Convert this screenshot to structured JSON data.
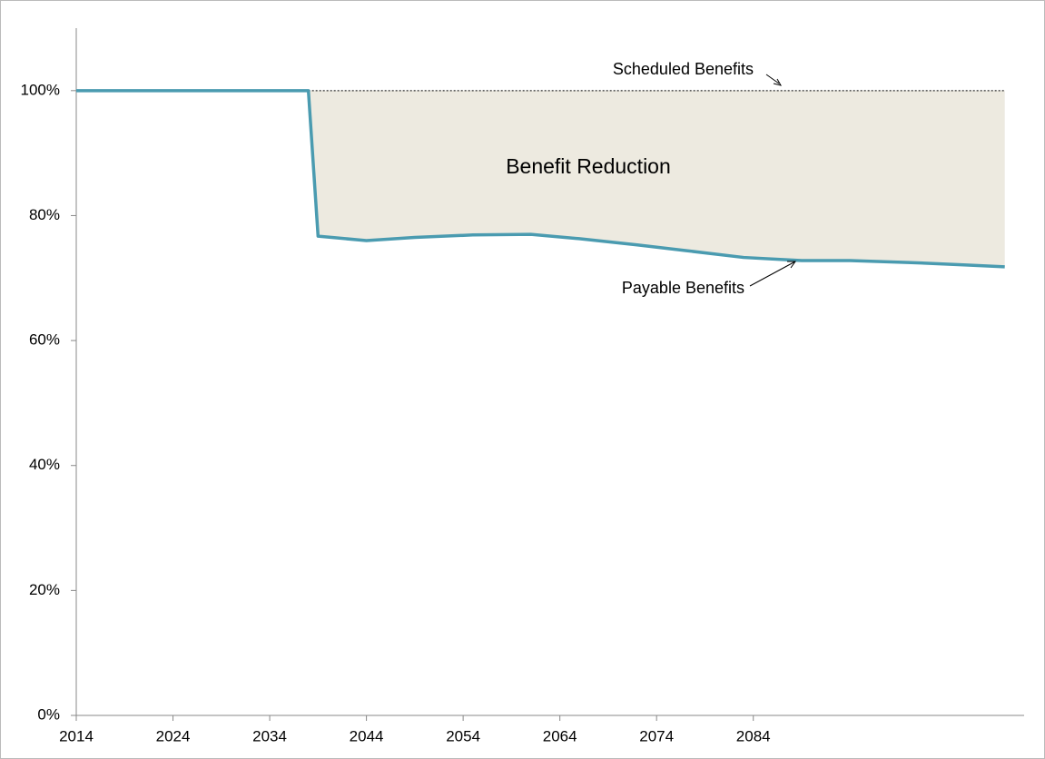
{
  "chart_data": {
    "type": "line",
    "x": [
      2014,
      2038,
      2039,
      2044,
      2049,
      2055,
      2061,
      2066,
      2072,
      2077,
      2083,
      2089,
      2094,
      2100,
      2106,
      2110
    ],
    "series": [
      {
        "name": "Scheduled Benefits",
        "color": "#000000",
        "values": [
          null,
          100,
          100,
          100,
          100,
          100,
          100,
          100,
          100,
          100,
          100,
          100,
          100,
          100,
          100,
          100
        ]
      },
      {
        "name": "Payable Benefits",
        "color": "#4a9bb0",
        "values": [
          100,
          100,
          76.7,
          76.0,
          76.5,
          76.9,
          77.0,
          76.3,
          75.3,
          74.4,
          73.3,
          72.8,
          72.8,
          72.5,
          72.1,
          71.8
        ]
      }
    ],
    "annotations": [
      "Benefit Reduction"
    ],
    "fill_color": "#edeae0",
    "xlim": [
      2014,
      2112
    ],
    "xticks": [
      2014,
      2024,
      2034,
      2044,
      2054,
      2064,
      2074,
      2084
    ],
    "ylim": [
      0,
      110
    ],
    "yticks": [
      {
        "value": 0,
        "label": "0%"
      },
      {
        "value": 20,
        "label": "20%"
      },
      {
        "value": 40,
        "label": "40%"
      },
      {
        "value": 60,
        "label": "60%"
      },
      {
        "value": 80,
        "label": "80%"
      },
      {
        "value": 100,
        "label": "100%"
      }
    ]
  }
}
